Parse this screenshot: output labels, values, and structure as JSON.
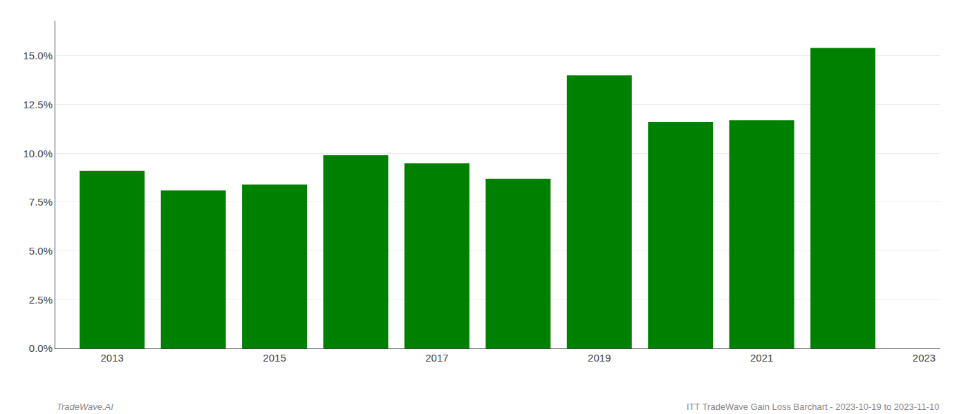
{
  "chart_data": {
    "type": "bar",
    "x": [
      2013,
      2014,
      2015,
      2016,
      2017,
      2018,
      2019,
      2020,
      2021,
      2022
    ],
    "values": [
      0.091,
      0.081,
      0.084,
      0.099,
      0.095,
      0.087,
      0.14,
      0.116,
      0.117,
      0.154
    ],
    "color": "#008000",
    "xlim": [
      2012.3,
      2023.2
    ],
    "xticks": [
      2013,
      2015,
      2017,
      2019,
      2021,
      2023
    ],
    "ylim": [
      0.0,
      0.168
    ],
    "yticks": [
      {
        "value": 0.0,
        "label": "0.0%"
      },
      {
        "value": 0.025,
        "label": "2.5%"
      },
      {
        "value": 0.05,
        "label": "5.0%"
      },
      {
        "value": 0.075,
        "label": "7.5%"
      },
      {
        "value": 0.1,
        "label": "10.0%"
      },
      {
        "value": 0.125,
        "label": "12.5%"
      },
      {
        "value": 0.15,
        "label": "15.0%"
      }
    ],
    "grid": true,
    "annotations": [
      "TradeWave.AI",
      "ITT TradeWave Gain Loss Barchart - 2023-10-19 to 2023-11-10"
    ]
  }
}
